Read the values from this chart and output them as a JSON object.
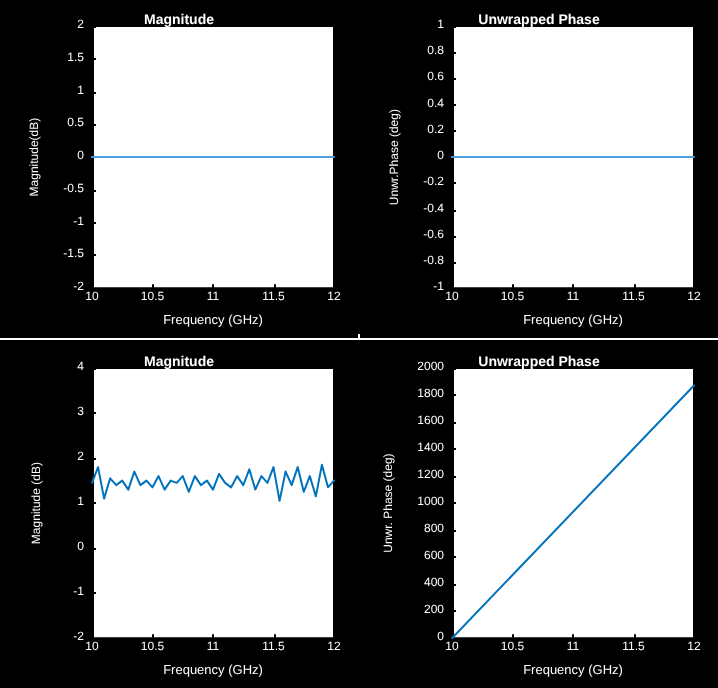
{
  "chart_data": [
    {
      "type": "line",
      "title": "Magnitude",
      "xlabel": "Frequency (GHz)",
      "ylabel": "Magnitude(dB)",
      "x": [
        10,
        12
      ],
      "series": [
        {
          "color": "#4d9fdc",
          "values": [
            0,
            0
          ]
        }
      ],
      "xlim": [
        10,
        12
      ],
      "xticks": [
        10,
        10.5,
        11,
        11.5,
        12
      ],
      "ylim": [
        -2,
        2
      ],
      "yticks": [
        -2,
        -1.5,
        -1,
        -0.5,
        0,
        0.5,
        1,
        1.5,
        2
      ],
      "marker": "none",
      "line_style": "solid"
    },
    {
      "type": "line",
      "title": "Unwrapped Phase",
      "xlabel": "Frequency (GHz)",
      "ylabel": "Unwr.Phase (deg)",
      "x": [
        10,
        12
      ],
      "series": [
        {
          "color": "#4d9fdc",
          "values": [
            0,
            0
          ]
        }
      ],
      "xlim": [
        10,
        12
      ],
      "xticks": [
        10,
        10.5,
        11,
        11.5,
        12
      ],
      "ylim": [
        -1,
        1
      ],
      "yticks": [
        -1,
        -0.8,
        -0.6,
        -0.4,
        -0.2,
        0,
        0.2,
        0.4,
        0.6,
        0.8,
        1
      ],
      "marker": "none",
      "line_style": "solid"
    },
    {
      "type": "line",
      "title": "Magnitude",
      "xlabel": "Frequency (GHz)",
      "ylabel": "Magnitude (dB)",
      "x": [
        10,
        10.05,
        10.1,
        10.15,
        10.2,
        10.25,
        10.3,
        10.35,
        10.4,
        10.45,
        10.5,
        10.55,
        10.6,
        10.65,
        10.7,
        10.75,
        10.8,
        10.85,
        10.9,
        10.95,
        11,
        11.05,
        11.1,
        11.15,
        11.2,
        11.25,
        11.3,
        11.35,
        11.4,
        11.45,
        11.5,
        11.55,
        11.6,
        11.65,
        11.7,
        11.75,
        11.8,
        11.85,
        11.9,
        11.95,
        12
      ],
      "series": [
        {
          "color": "#0072bd",
          "values": [
            1.45,
            1.8,
            1.1,
            1.55,
            1.4,
            1.5,
            1.3,
            1.7,
            1.4,
            1.5,
            1.35,
            1.6,
            1.3,
            1.5,
            1.45,
            1.6,
            1.25,
            1.6,
            1.4,
            1.5,
            1.3,
            1.65,
            1.45,
            1.35,
            1.6,
            1.4,
            1.75,
            1.3,
            1.6,
            1.45,
            1.8,
            1.05,
            1.7,
            1.4,
            1.8,
            1.25,
            1.6,
            1.15,
            1.85,
            1.35,
            1.5
          ]
        }
      ],
      "xlim": [
        10,
        12
      ],
      "xticks": [
        10,
        10.5,
        11,
        11.5,
        12
      ],
      "ylim": [
        -2,
        4
      ],
      "yticks": [
        -2,
        -1,
        0,
        1,
        2,
        3,
        4
      ],
      "marker": "none",
      "line_style": "solid"
    },
    {
      "type": "line",
      "title": "Unwrapped Phase",
      "xlabel": "Frequency (GHz)",
      "ylabel": "Unwr. Phase (deg)",
      "x": [
        10,
        12
      ],
      "series": [
        {
          "color": "#0072bd",
          "values": [
            0,
            1870
          ]
        }
      ],
      "xlim": [
        10,
        12
      ],
      "xticks": [
        10,
        10.5,
        11,
        11.5,
        12
      ],
      "ylim": [
        0,
        2000
      ],
      "yticks": [
        0,
        200,
        400,
        600,
        800,
        1000,
        1200,
        1400,
        1600,
        1800,
        2000
      ],
      "marker": "none",
      "line_style": "solid"
    }
  ]
}
